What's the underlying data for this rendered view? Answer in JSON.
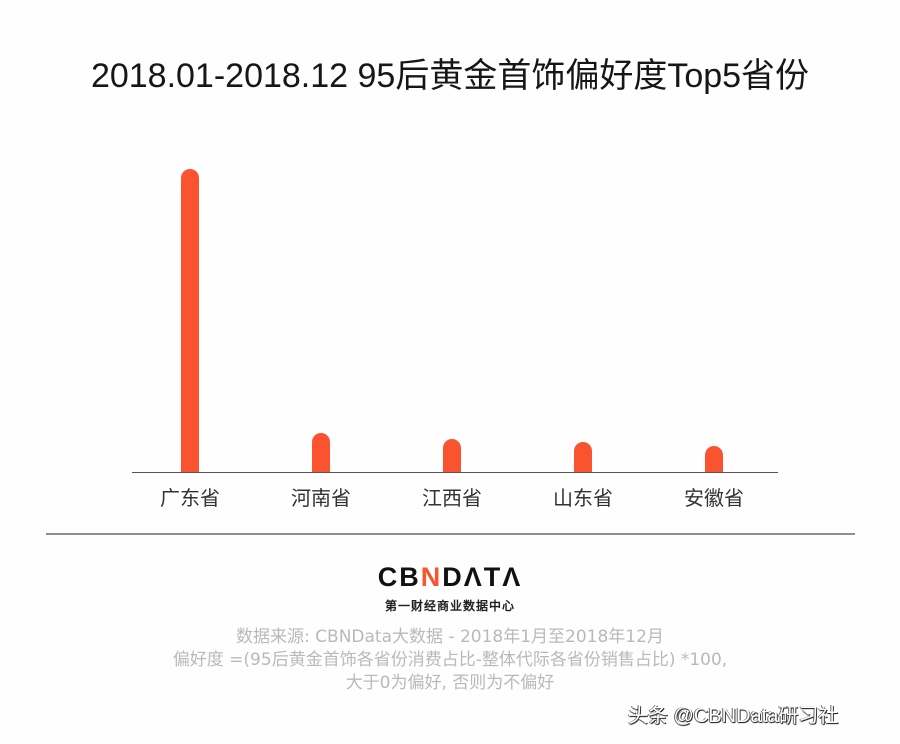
{
  "chart_data": {
    "type": "bar",
    "title": "2018.01-2018.12 95后黄金首饰偏好度Top5省份",
    "categories": [
      "广东省",
      "河南省",
      "江西省",
      "山东省",
      "安徽省"
    ],
    "values": [
      100,
      13,
      11,
      10,
      8.5
    ],
    "value_note": "Relative bar heights (Guangdong = 100); no numeric axis shown",
    "xlabel": "",
    "ylabel": "",
    "grid": false,
    "legend": null,
    "color": "#F9532F"
  },
  "title": "2018.01-2018.12 95后黄金首饰偏好度Top5省份",
  "logo": {
    "part1": "CB",
    "part2": "N",
    "part3": "DΛTΛ",
    "subtitle": "第一财经商业数据中心"
  },
  "source": {
    "line1": "数据来源: CBNData大数据 - 2018年1月至2018年12月",
    "line2": "偏好度 =(95后黄金首饰各省份消费占比-整体代际各省份销售占比) *100,",
    "line3": "大于0为偏好, 否则为不偏好"
  },
  "watermark": "头条 @CBNData研习社"
}
